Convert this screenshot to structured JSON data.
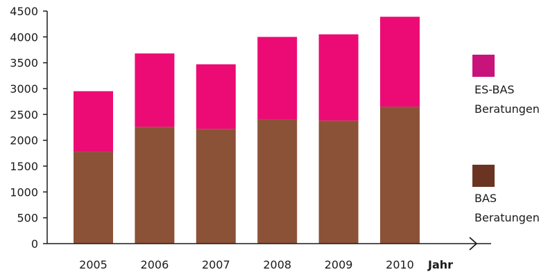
{
  "chart_data": {
    "type": "bar",
    "stacked": true,
    "categories": [
      "2005",
      "2006",
      "2007",
      "2008",
      "2009",
      "2010"
    ],
    "series": [
      {
        "name": "BAS Beratungen",
        "legend_lines": [
          "BAS",
          "Beratungen"
        ],
        "color": "#8B5238",
        "values": [
          1780,
          2260,
          2220,
          2410,
          2380,
          2650
        ]
      },
      {
        "name": "ES-BAS Beratungen",
        "legend_lines": [
          "ES-BAS",
          "Beratungen"
        ],
        "color": "#EC0B74",
        "values": [
          1170,
          1420,
          1250,
          1590,
          1670,
          1740
        ]
      }
    ],
    "xlabel": "Jahr",
    "ylabel": "",
    "ylim": [
      0,
      4500
    ],
    "yticks": [
      "0",
      "500",
      "1000",
      "1500",
      "2000",
      "2500",
      "3000",
      "3500",
      "4000",
      "4500"
    ],
    "legend_position": "right",
    "grid": false
  },
  "colors": {
    "bas": "#8B5238",
    "es_bas": "#EC0B74",
    "legend_bas_swatch": "#6B3322",
    "legend_es_bas_swatch": "#C8137A",
    "axis": "#1a1a1a"
  }
}
